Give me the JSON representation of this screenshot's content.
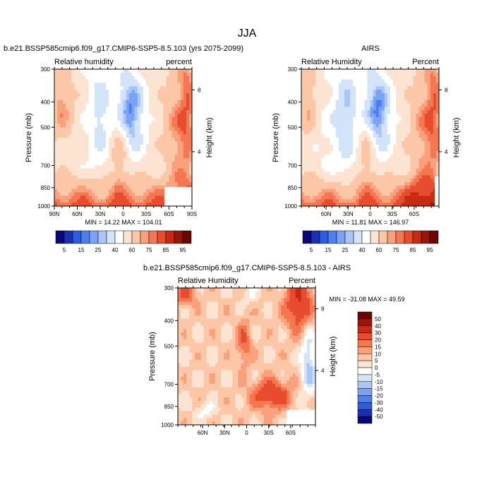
{
  "figure": {
    "title": "JJA"
  },
  "colors": {
    "top_scale": [
      "#08087a",
      "#1b2fb5",
      "#2c5ce0",
      "#4d7ff0",
      "#7aa3f5",
      "#a9c6f7",
      "#d3e3f8",
      "#ffffff",
      "#fde4d2",
      "#fcc7a6",
      "#f9a07c",
      "#f47752",
      "#e84c2f",
      "#c92a14",
      "#9a1407",
      "#6a0500"
    ],
    "diff_scale": [
      "#08087a",
      "#1b2fb5",
      "#2c5ce0",
      "#4d7ff0",
      "#7aa3f5",
      "#a9c6f7",
      "#d3e3f8",
      "#ffffff",
      "#fde4d2",
      "#fcc7a6",
      "#f9a07c",
      "#f47752",
      "#e84c2f",
      "#c92a14",
      "#9a1407",
      "#6a0500"
    ]
  },
  "chart_data": [
    {
      "type": "heatmap",
      "title": "b.e21.BSSP585cmip6.f09_g17.CMIP6-SSP5-8.5.103 (yrs 2075-2099)",
      "left_label": "Relative humidity",
      "right_label": "percent",
      "ylabel": "Pressure (mb)",
      "y2label": "Height (km)",
      "y_ticks": [
        "300",
        "400",
        "500",
        "700",
        "850",
        "1000"
      ],
      "y2_ticks": [
        "8",
        "4"
      ],
      "x_ticks": [
        "90N",
        "60N",
        "30N",
        "0",
        "30S",
        "60S",
        "90S"
      ],
      "stats": "MIN = 14.22  MAX = 104.01",
      "colorbar_labels": [
        "5",
        "15",
        "25",
        "40",
        "60",
        "75",
        "85",
        "95"
      ]
    },
    {
      "type": "heatmap",
      "title": "AIRS",
      "left_label": "Relative Humidity",
      "right_label": "Percent",
      "ylabel": "Pressure (mb)",
      "y2label": "Height (km)",
      "y_ticks": [
        "300",
        "400",
        "500",
        "700",
        "850",
        "1000"
      ],
      "y2_ticks": [
        "8",
        "4"
      ],
      "x_ticks": [
        "60N",
        "30N",
        "0",
        "30S",
        "60S"
      ],
      "stats": "MIN = 11.81  MAX = 146.97",
      "colorbar_labels": [
        "5",
        "15",
        "25",
        "40",
        "60",
        "75",
        "85",
        "95"
      ]
    },
    {
      "type": "heatmap",
      "title": "b.e21.BSSP585cmip6.f09_g17.CMIP6-SSP5-8.5.103 - AIRS",
      "left_label": "Relative Humidity",
      "right_label": "Percent",
      "ylabel": "Pressure (mb)",
      "y2label": "Height (km)",
      "y_ticks": [
        "300",
        "400",
        "500",
        "700",
        "850",
        "1000"
      ],
      "y2_ticks": [
        "8",
        "4"
      ],
      "x_ticks": [
        "60N",
        "30N",
        "0",
        "30S",
        "60S"
      ],
      "stats": "MIN = -31.08  MAX = 49.59",
      "colorbar_labels": [
        "50",
        "40",
        "30",
        "20",
        "15",
        "10",
        "5",
        "0",
        "-5",
        "-10",
        "-15",
        "-20",
        "-30",
        "-40",
        "-50"
      ]
    }
  ]
}
